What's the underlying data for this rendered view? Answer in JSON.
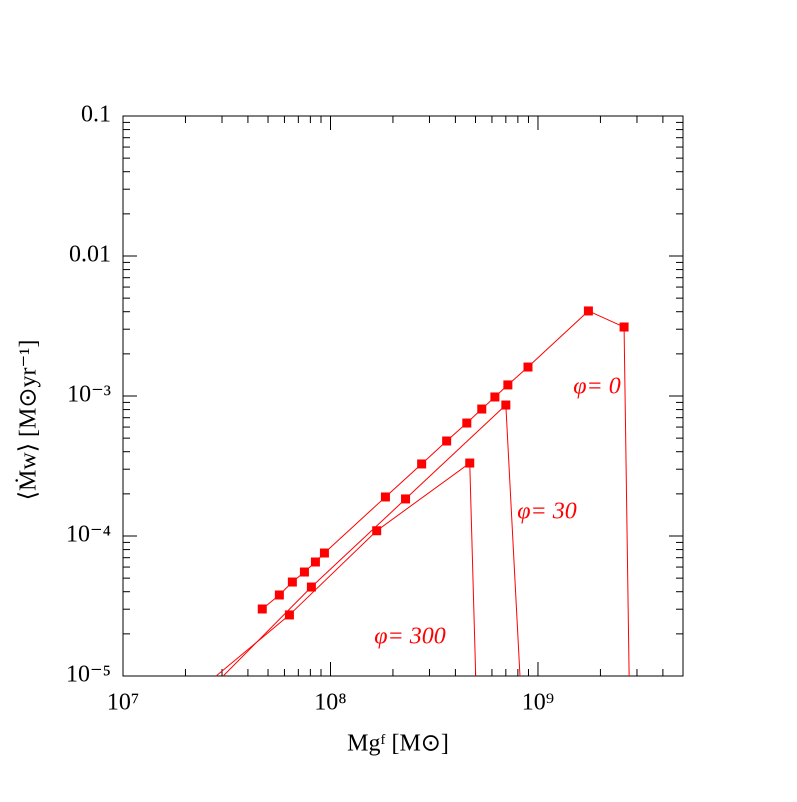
{
  "chart_data": {
    "type": "line",
    "xlabel": "Mgᶠ [M⊙]",
    "ylabel": "⟨Ṁw⟩  [M⊙yr⁻¹]",
    "xscale": "log",
    "yscale": "log",
    "xlim": [
      10000000,
      5000000000
    ],
    "ylim": [
      1e-05,
      0.1
    ],
    "xticks": [
      {
        "value": 10000000,
        "label": "10⁷"
      },
      {
        "value": 100000000,
        "label": "10⁸"
      },
      {
        "value": 1000000000,
        "label": "10⁹"
      }
    ],
    "yticks": [
      {
        "value": 1e-05,
        "label": "10⁻⁵"
      },
      {
        "value": 0.0001,
        "label": "10⁻⁴"
      },
      {
        "value": 0.001,
        "label": "10⁻³"
      },
      0.01,
      0.1
    ],
    "series": [
      {
        "name": "φ=  0",
        "color": "#ff0000",
        "x": [
          46900000,
          56700000,
          65500000,
          74900000,
          84600000,
          93500000,
          184000000,
          275000000,
          363000000,
          454000000,
          536000000,
          620000000,
          716000000,
          895000000,
          1750000000,
          2600000000,
          2750000000
        ],
        "values": [
          3.01e-05,
          3.79e-05,
          4.69e-05,
          5.53e-05,
          6.52e-05,
          7.56e-05,
          0.00019,
          0.000327,
          0.000477,
          0.000641,
          0.000807,
          0.000984,
          0.0012,
          0.00161,
          0.00405,
          0.00311,
          1e-05
        ]
      },
      {
        "name": "φ=  30",
        "color": "#ff0000",
        "x": [
          30400000,
          80900000,
          230000000,
          700000000,
          819000000
        ],
        "values": [
          1e-05,
          4.32e-05,
          0.000184,
          0.000862,
          1e-05
        ]
      },
      {
        "name": "φ=  300",
        "color": "#ff0000",
        "x": [
          28100000,
          63400000,
          167000000,
          469000000,
          501000000
        ],
        "values": [
          1e-05,
          2.73e-05,
          0.000109,
          0.000332,
          1e-05
        ]
      }
    ]
  }
}
